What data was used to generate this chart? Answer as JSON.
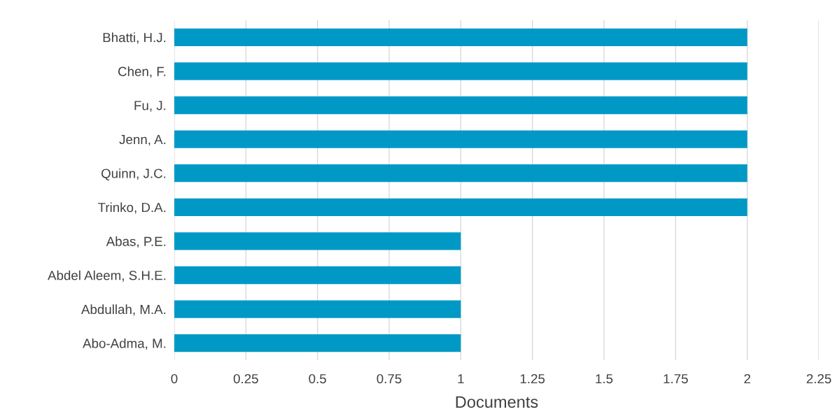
{
  "chart_data": {
    "type": "bar",
    "orientation": "horizontal",
    "xlabel": "Documents",
    "categories": [
      "Bhatti, H.J.",
      "Chen, F.",
      "Fu, J.",
      "Jenn, A.",
      "Quinn, J.C.",
      "Trinko, D.A.",
      "Abas, P.E.",
      "Abdel Aleem, S.H.E.",
      "Abdullah, M.A.",
      "Abo-Adma, M."
    ],
    "values": [
      2,
      2,
      2,
      2,
      2,
      2,
      1,
      1,
      1,
      1
    ],
    "color": "#0099c6",
    "xlim": [
      0,
      2.25
    ],
    "xticks": [
      0,
      0.25,
      0.5,
      0.75,
      1,
      1.25,
      1.5,
      1.75,
      2,
      2.25
    ],
    "grid": "x"
  }
}
